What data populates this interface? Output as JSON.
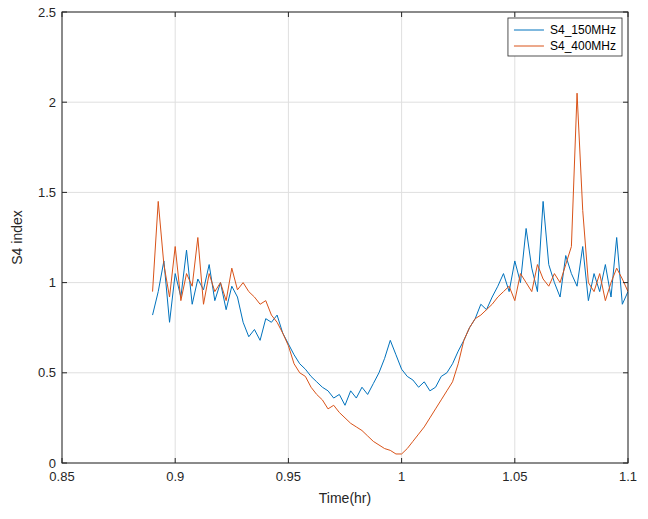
{
  "chart_data": {
    "type": "line",
    "x_label": "Time(hr)",
    "y_label": "S4 index",
    "x": [
      0.89,
      0.8925,
      0.895,
      0.8975,
      0.9,
      0.9025,
      0.905,
      0.9075,
      0.91,
      0.9125,
      0.915,
      0.9175,
      0.92,
      0.9225,
      0.925,
      0.9275,
      0.93,
      0.9325,
      0.935,
      0.9375,
      0.94,
      0.9425,
      0.945,
      0.9475,
      0.95,
      0.9525,
      0.955,
      0.9575,
      0.96,
      0.9625,
      0.965,
      0.9675,
      0.97,
      0.9725,
      0.975,
      0.9775,
      0.98,
      0.9825,
      0.985,
      0.9875,
      0.99,
      0.9925,
      0.995,
      0.9975,
      1.0,
      1.0025,
      1.005,
      1.0075,
      1.01,
      1.0125,
      1.015,
      1.0175,
      1.02,
      1.0225,
      1.025,
      1.0275,
      1.03,
      1.0325,
      1.035,
      1.0375,
      1.04,
      1.0425,
      1.045,
      1.0475,
      1.05,
      1.0525,
      1.055,
      1.0575,
      1.06,
      1.0625,
      1.065,
      1.0675,
      1.07,
      1.0725,
      1.075,
      1.0775,
      1.08,
      1.0825,
      1.085,
      1.0875,
      1.09,
      1.0925,
      1.095,
      1.0975,
      1.1
    ],
    "series": [
      {
        "name": "S4_150MHz",
        "color": "#0072bd",
        "values": [
          0.82,
          0.95,
          1.12,
          0.78,
          1.05,
          0.92,
          1.18,
          0.88,
          1.02,
          0.96,
          1.1,
          0.9,
          1.0,
          0.85,
          0.98,
          0.92,
          0.78,
          0.7,
          0.74,
          0.68,
          0.8,
          0.78,
          0.82,
          0.72,
          0.66,
          0.6,
          0.55,
          0.52,
          0.48,
          0.45,
          0.42,
          0.4,
          0.36,
          0.38,
          0.32,
          0.4,
          0.36,
          0.42,
          0.38,
          0.44,
          0.5,
          0.58,
          0.68,
          0.6,
          0.52,
          0.48,
          0.46,
          0.42,
          0.45,
          0.4,
          0.42,
          0.48,
          0.5,
          0.55,
          0.62,
          0.68,
          0.75,
          0.8,
          0.88,
          0.85,
          0.92,
          0.98,
          1.05,
          0.95,
          1.12,
          1.0,
          1.3,
          1.08,
          0.95,
          1.45,
          1.1,
          1.0,
          0.92,
          1.15,
          1.05,
          0.98,
          1.2,
          0.9,
          1.05,
          0.95,
          1.1,
          0.92,
          1.25,
          0.88,
          0.95
        ]
      },
      {
        "name": "S4_400MHz",
        "color": "#d95319",
        "values": [
          0.95,
          1.45,
          1.1,
          0.92,
          1.2,
          0.9,
          1.05,
          0.98,
          1.25,
          0.88,
          1.05,
          0.95,
          1.0,
          0.9,
          1.08,
          0.96,
          1.0,
          0.95,
          0.92,
          0.88,
          0.9,
          0.82,
          0.78,
          0.72,
          0.65,
          0.55,
          0.5,
          0.48,
          0.42,
          0.38,
          0.35,
          0.3,
          0.32,
          0.28,
          0.25,
          0.22,
          0.2,
          0.18,
          0.15,
          0.12,
          0.1,
          0.08,
          0.07,
          0.05,
          0.05,
          0.08,
          0.12,
          0.16,
          0.2,
          0.25,
          0.3,
          0.35,
          0.4,
          0.45,
          0.55,
          0.68,
          0.75,
          0.8,
          0.82,
          0.85,
          0.88,
          0.92,
          0.95,
          0.98,
          0.9,
          1.05,
          1.0,
          0.95,
          1.1,
          1.02,
          0.98,
          1.05,
          1.0,
          1.1,
          1.2,
          2.05,
          1.4,
          1.0,
          0.95,
          1.05,
          0.9,
          1.0,
          1.08,
          1.02,
          0.95
        ]
      }
    ],
    "xlim": [
      0.85,
      1.1
    ],
    "xticks": [
      0.85,
      0.9,
      0.95,
      1,
      1.05,
      1.1
    ],
    "ylim": [
      0,
      2.5
    ],
    "yticks": [
      0,
      0.5,
      1,
      1.5,
      2,
      2.5
    ],
    "grid": true,
    "legend": "northeast"
  }
}
